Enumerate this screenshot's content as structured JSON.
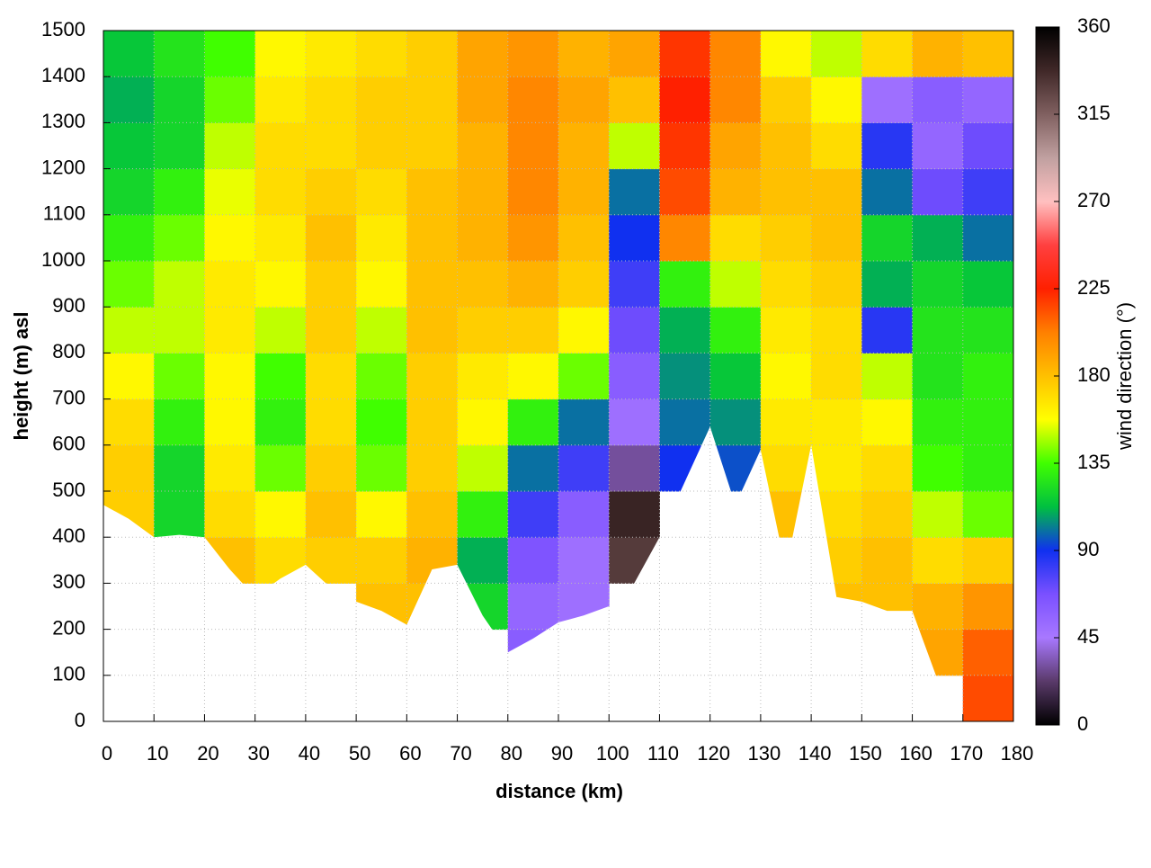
{
  "chart_data": {
    "type": "heatmap",
    "xlabel": "distance (km)",
    "ylabel": "height (m) asl",
    "colorbar_label": "wind direction (°)",
    "xlim": [
      0,
      180
    ],
    "xticks": [
      0,
      10,
      20,
      30,
      40,
      50,
      60,
      70,
      80,
      90,
      100,
      110,
      120,
      130,
      140,
      150,
      160,
      170,
      180
    ],
    "ylim": [
      0,
      1500
    ],
    "yticks": [
      0,
      100,
      200,
      300,
      400,
      500,
      600,
      700,
      800,
      900,
      1000,
      1100,
      1200,
      1300,
      1400,
      1500
    ],
    "zlim": [
      0,
      360
    ],
    "zticks": [
      0,
      45,
      90,
      135,
      180,
      225,
      270,
      315,
      360
    ],
    "grid": true,
    "colormap": [
      "#000000",
      "#5a3a6a",
      "#a878ff",
      "#7a50ff",
      "#1030f0",
      "#00c040",
      "#40ff00",
      "#ffff00",
      "#ffc000",
      "#ff8000",
      "#ff2000",
      "#ff4040",
      "#ffc0c0",
      "#c0a0a0",
      "#806060",
      "#402828",
      "#000000"
    ],
    "x": [
      5,
      15,
      25,
      35,
      45,
      55,
      65,
      75,
      85,
      95,
      105,
      115,
      125,
      135,
      145,
      155,
      165,
      175
    ],
    "y": [
      50,
      150,
      250,
      350,
      450,
      550,
      650,
      750,
      850,
      950,
      1050,
      1150,
      1250,
      1350,
      1450
    ],
    "values": [
      [
        null,
        null,
        null,
        null,
        175,
        175,
        170,
        160,
        150,
        140,
        130,
        120,
        115,
        110,
        115
      ],
      [
        null,
        null,
        null,
        null,
        120,
        120,
        130,
        140,
        150,
        150,
        140,
        130,
        120,
        120,
        125
      ],
      [
        null,
        null,
        null,
        180,
        170,
        165,
        160,
        160,
        165,
        165,
        160,
        155,
        150,
        140,
        135
      ],
      [
        null,
        null,
        null,
        170,
        160,
        140,
        130,
        135,
        150,
        160,
        165,
        170,
        170,
        165,
        160
      ],
      [
        null,
        null,
        null,
        175,
        180,
        175,
        170,
        170,
        175,
        175,
        180,
        175,
        170,
        170,
        165
      ],
      [
        null,
        null,
        180,
        175,
        160,
        140,
        135,
        140,
        150,
        160,
        165,
        170,
        175,
        175,
        170
      ],
      [
        null,
        null,
        180,
        185,
        180,
        175,
        175,
        175,
        180,
        180,
        180,
        180,
        175,
        175,
        175
      ],
      [
        null,
        null,
        120,
        110,
        130,
        150,
        160,
        165,
        175,
        180,
        185,
        185,
        185,
        190,
        190
      ],
      [
        null,
        60,
        55,
        65,
        80,
        100,
        130,
        160,
        175,
        185,
        195,
        200,
        200,
        200,
        195
      ],
      [
        null,
        null,
        50,
        50,
        60,
        80,
        100,
        140,
        160,
        175,
        180,
        185,
        185,
        190,
        185
      ],
      [
        null,
        null,
        null,
        330,
        340,
        30,
        50,
        60,
        70,
        80,
        90,
        100,
        150,
        180,
        190
      ],
      [
        null,
        null,
        null,
        null,
        null,
        90,
        100,
        105,
        110,
        130,
        200,
        215,
        220,
        225,
        220
      ],
      [
        null,
        null,
        null,
        null,
        null,
        95,
        105,
        115,
        130,
        150,
        170,
        185,
        190,
        200,
        200
      ],
      [
        null,
        null,
        null,
        null,
        180,
        170,
        165,
        160,
        165,
        170,
        175,
        180,
        180,
        175,
        160
      ],
      [
        null,
        null,
        180,
        175,
        170,
        165,
        165,
        170,
        170,
        175,
        180,
        180,
        170,
        160,
        150
      ],
      [
        null,
        null,
        180,
        180,
        175,
        170,
        160,
        150,
        85,
        110,
        120,
        100,
        85,
        50,
        170
      ],
      [
        null,
        190,
        185,
        170,
        150,
        135,
        130,
        125,
        125,
        120,
        110,
        70,
        55,
        60,
        185
      ],
      [
        215,
        210,
        195,
        175,
        140,
        130,
        130,
        130,
        125,
        115,
        100,
        80,
        70,
        55,
        180
      ]
    ],
    "terrain": {
      "x": [
        0,
        5,
        10,
        15,
        20,
        25,
        30,
        35,
        40,
        45,
        50,
        55,
        60,
        65,
        70,
        75,
        80,
        85,
        90,
        95,
        100,
        105,
        110,
        115,
        120,
        125,
        130,
        135,
        140,
        145,
        150,
        155,
        160,
        165,
        170,
        175,
        180
      ],
      "values": [
        470,
        440,
        400,
        405,
        400,
        330,
        270,
        310,
        340,
        290,
        260,
        240,
        210,
        330,
        340,
        230,
        150,
        180,
        215,
        230,
        250,
        300,
        400,
        520,
        640,
        470,
        590,
        330,
        600,
        270,
        260,
        240,
        240,
        90,
        0,
        0,
        0
      ]
    }
  }
}
